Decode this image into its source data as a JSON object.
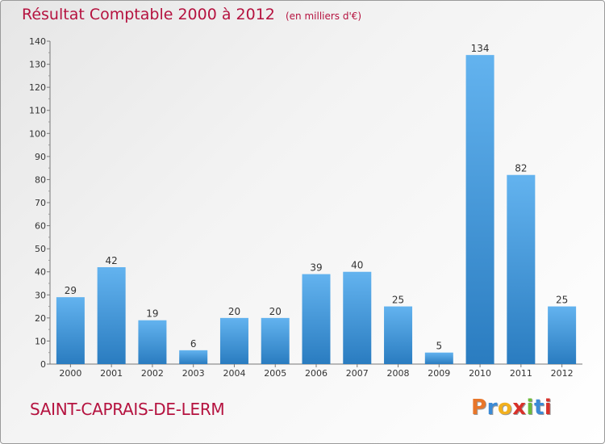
{
  "header": {
    "title": "Résultat Comptable 2000 à 2012",
    "unit": "(en milliers d'€)"
  },
  "commune": "SAINT-CAPRAIS-DE-LERM",
  "logo": {
    "letters": [
      "P",
      "r",
      "o",
      "x",
      "i",
      "t",
      "i"
    ],
    "colors": [
      "#e8762a",
      "#3b8ad6",
      "#f2b01e",
      "#d8312a",
      "#6dbb3a",
      "#3b8ad6",
      "#d8312a"
    ]
  },
  "colors": {
    "bar_light": "#63b3ef",
    "bar_dark": "#2a7cc0",
    "title": "#b5123f"
  },
  "chart_data": {
    "type": "bar",
    "categories": [
      "2000",
      "2001",
      "2002",
      "2003",
      "2004",
      "2005",
      "2006",
      "2007",
      "2008",
      "2009",
      "2010",
      "2011",
      "2012"
    ],
    "values": [
      29,
      42,
      19,
      6,
      20,
      20,
      39,
      40,
      25,
      5,
      134,
      82,
      25
    ],
    "ylim": [
      0,
      140
    ],
    "yticks": [
      0,
      10,
      20,
      30,
      40,
      50,
      60,
      70,
      80,
      90,
      100,
      110,
      120,
      130,
      140
    ],
    "grid": false,
    "data_labels": true
  }
}
